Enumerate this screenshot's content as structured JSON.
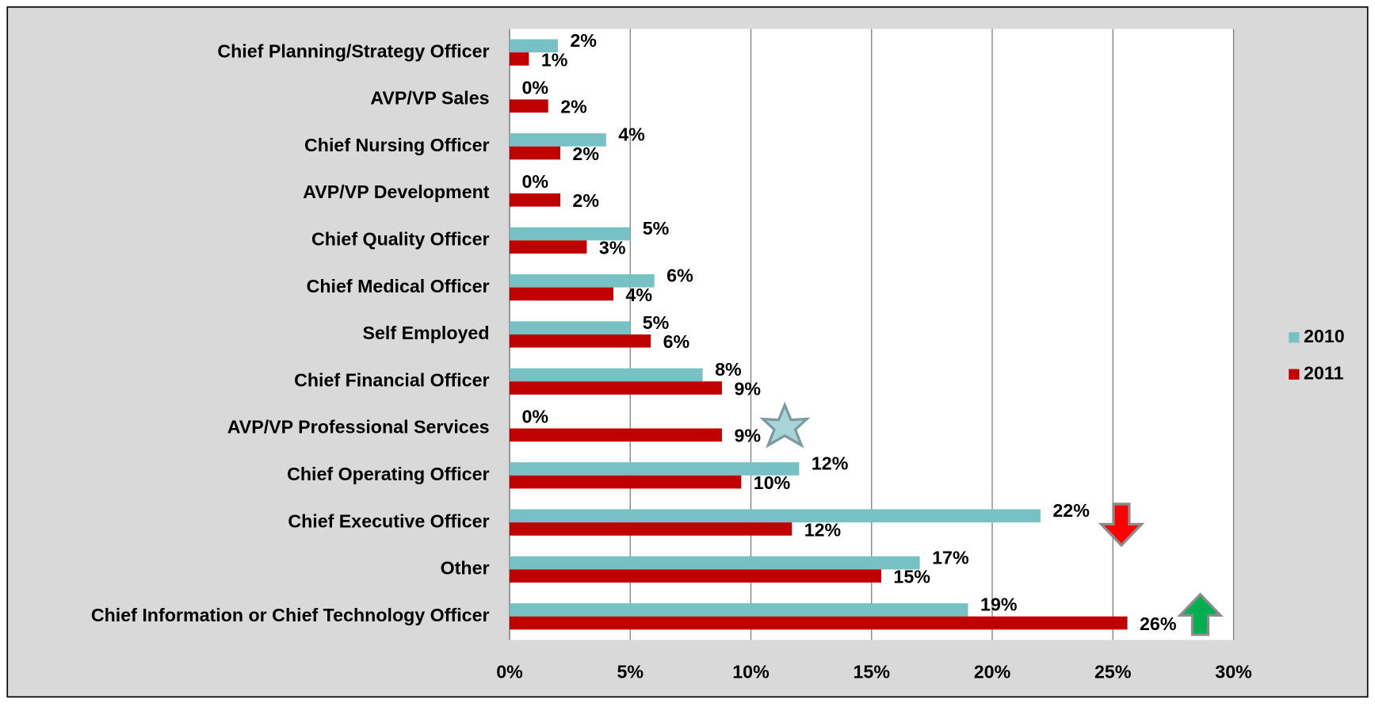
{
  "chart_data": {
    "type": "hbar",
    "categories": [
      "Chief Planning/Strategy Officer",
      "AVP/VP Sales",
      "Chief Nursing Officer",
      "AVP/VP Development",
      "Chief Quality Officer",
      "Chief Medical Officer",
      "Self Employed",
      "Chief Financial Officer",
      "AVP/VP Professional Services",
      "Chief Operating Officer",
      "Chief Executive Officer",
      "Other",
      "Chief Information or Chief Technology Officer"
    ],
    "series": [
      {
        "name": "2010",
        "color": "#77c1c5",
        "values": [
          2,
          0,
          4,
          0,
          5,
          6,
          5,
          8,
          0,
          12,
          22,
          17,
          19
        ],
        "value_labels": [
          "2%",
          "0%",
          "4%",
          "0%",
          "5%",
          "6%",
          "5%",
          "8%",
          "0%",
          "12%",
          "22%",
          "17%",
          "19%"
        ]
      },
      {
        "name": "2011",
        "color": "#c00000",
        "values": [
          0.8,
          1.6,
          2.1,
          2.1,
          3.2,
          4.3,
          5.85,
          8.8,
          8.8,
          9.6,
          11.7,
          15.4,
          25.6
        ],
        "value_labels": [
          "1%",
          "2%",
          "2%",
          "2%",
          "3%",
          "4%",
          "6%",
          "9%",
          "9%",
          "10%",
          "12%",
          "15%",
          "26%"
        ]
      }
    ],
    "xlim": [
      0,
      30
    ],
    "xticks": [
      {
        "value": 0,
        "label": "0%"
      },
      {
        "value": 5,
        "label": "5%"
      },
      {
        "value": 10,
        "label": "10%"
      },
      {
        "value": 15,
        "label": "15%"
      },
      {
        "value": 20,
        "label": "20%"
      },
      {
        "value": 25,
        "label": "25%"
      },
      {
        "value": 30,
        "label": "30%"
      }
    ],
    "grid": true,
    "legend": "right"
  }
}
